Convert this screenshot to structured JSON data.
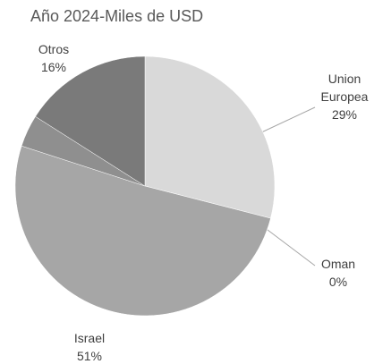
{
  "chart_data": {
    "type": "pie",
    "title": "Año 2024-Miles de USD",
    "categories": [
      "Union Europea",
      "Oman",
      "Israel",
      null,
      "Otros"
    ],
    "values": [
      29,
      0,
      51,
      4,
      16
    ],
    "value_labels": [
      "29%",
      "0%",
      "51%",
      null,
      "16%"
    ],
    "colors": [
      "#d9d9d9",
      "#c0c0c0",
      "#a6a6a6",
      "#8f8f8f",
      "#7a7a7a"
    ]
  }
}
